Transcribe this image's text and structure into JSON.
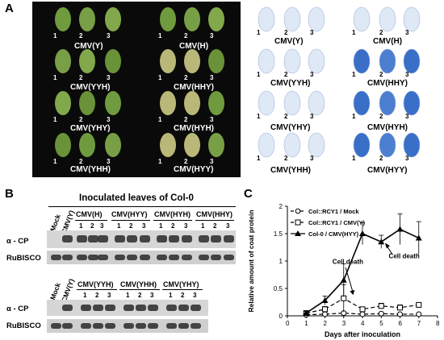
{
  "panel_labels": [
    "A",
    "B",
    "C"
  ],
  "panel_a": {
    "left_groups": [
      "CMV(Y)",
      "CMV(YYH)",
      "CMV(YHY)",
      "CMV(YHH)"
    ],
    "right_groups": [
      "CMV(H)",
      "CMV(HHY)",
      "CMV(HYH)",
      "CMV(HYY)"
    ],
    "leaf_numbers": [
      "1",
      "2",
      "3"
    ]
  },
  "panel_b": {
    "title": "Inoculated leaves of Col-0",
    "blot1": {
      "lanes": [
        "Mock",
        "CMV(Y)"
      ],
      "groups": [
        "CMV(H)",
        "CMV(HYY)",
        "CMV(HYH)",
        "CMV(HHY)"
      ],
      "rows": [
        "α - CP",
        "RuBISCO"
      ]
    },
    "blot2": {
      "lanes": [
        "Mock",
        "CMV(Y)"
      ],
      "groups": [
        "CMV(YYH)",
        "CMV(YHH)",
        "CMV(YHY)"
      ],
      "rows": [
        "α - CP",
        "RuBISCO"
      ]
    },
    "sample_numbers": [
      "1",
      "2",
      "3"
    ]
  },
  "chart_data": {
    "type": "line",
    "xlabel": "Days after inoculation",
    "ylabel": "Relative amount of coat protein",
    "xlim": [
      0,
      8
    ],
    "ylim": [
      0,
      2
    ],
    "xticks": [
      "0",
      "1",
      "2",
      "3",
      "4",
      "5",
      "6",
      "7",
      "8"
    ],
    "yticks": [
      "0",
      "0.5",
      "1",
      "1.5",
      "2"
    ],
    "series": [
      {
        "name": "Col::RCY1 / Mock",
        "style": "dash-open-circle",
        "x": [
          1,
          2,
          3,
          4,
          5,
          6,
          7
        ],
        "y": [
          0.02,
          0.03,
          0.05,
          0.03,
          0.04,
          0.03,
          0.03
        ]
      },
      {
        "name": "Col::RCY1 / CMV(Y)",
        "style": "dash-open-square",
        "x": [
          1,
          2,
          3,
          4,
          5,
          6,
          7
        ],
        "y": [
          0.05,
          0.12,
          0.32,
          0.12,
          0.18,
          0.15,
          0.2
        ],
        "err": [
          0.02,
          0.05,
          0.25,
          0.04,
          0.05,
          0.05,
          0.04
        ]
      },
      {
        "name": "Col-0 / CMV(HYY)",
        "style": "solid-triangle",
        "x": [
          1,
          2,
          3,
          4,
          5,
          6,
          7
        ],
        "y": [
          0.05,
          0.28,
          0.65,
          1.5,
          1.35,
          1.58,
          1.42
        ],
        "err": [
          0.03,
          0.08,
          0.3,
          0.2,
          0.12,
          0.28,
          0.3
        ]
      }
    ],
    "annotations": [
      "Cell death",
      "Cell death"
    ]
  },
  "colors": {
    "leaf_green": "#6f9a3e",
    "panel_black": "#0a0a0a",
    "stain_blue": "#3a6fc8"
  }
}
